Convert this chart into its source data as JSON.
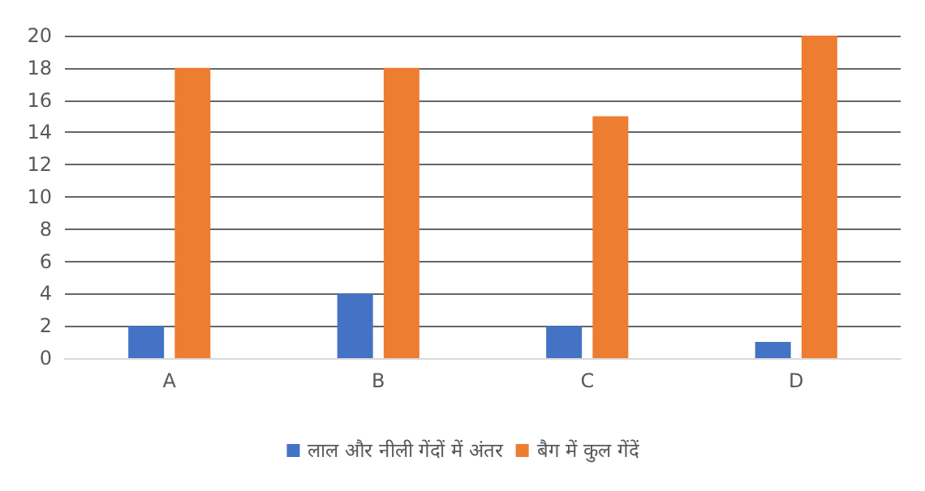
{
  "chart_data": {
    "type": "bar",
    "categories": [
      "A",
      "B",
      "C",
      "D"
    ],
    "series": [
      {
        "name": "लाल और नीली गेंदों में अंतर",
        "color": "#4472c4",
        "values": [
          2,
          4,
          2,
          1
        ]
      },
      {
        "name": "बैग में कुल गेंदें",
        "color": "#ed7d31",
        "values": [
          18,
          18,
          15,
          20
        ]
      }
    ],
    "ylim": [
      0,
      20
    ],
    "yticks": [
      0,
      2,
      4,
      6,
      8,
      10,
      12,
      14,
      16,
      18,
      20
    ],
    "grid": "y",
    "legend": "bottom"
  }
}
